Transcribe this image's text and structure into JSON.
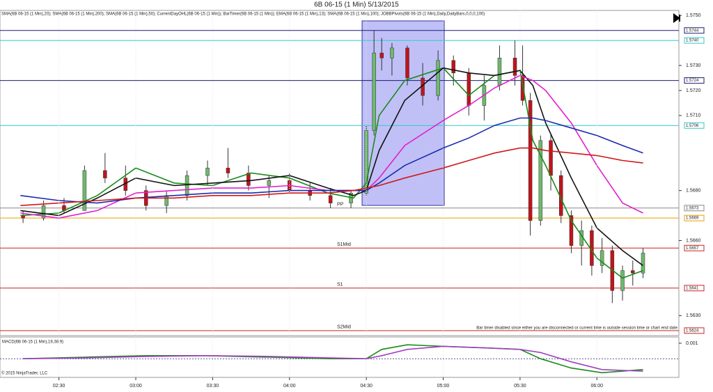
{
  "chart_data": [
    {
      "type": "candlestick",
      "title": "6B 06-15 (1 Min)  5/13/2015",
      "subtitle": "SMA(6B 06-15 (1 Min),20); SMA(6B 06-15 (1 Min),200); SMA(6B 06-15 (1 Min),50); CurrentDayOHL(6B 06-15 (1 Min)); BarTimer(6B 06-15 (1 Min)); EMA(6B 06-15 (1 Min),13); SMA(6B 06-15 (1 Min),100); JOBBPivots(6B 06-15 (1 Min),Daily,DailyBars,0,0,0,100)",
      "note": "Bar timer disabled since either you are disconnected or current time is outside session time or chart end date",
      "copyright": "© 2015 NinjaTrader, LLC",
      "xlim": [
        127,
        392
      ],
      "ylim": [
        1.5622,
        1.5752
      ],
      "yticks": [
        {
          "value": 1.575,
          "label": "1.5750"
        },
        {
          "value": 1.573,
          "label": "1.5730"
        },
        {
          "value": 1.572,
          "label": "1.5720"
        },
        {
          "value": 1.571,
          "label": "1.5710"
        },
        {
          "value": 1.568,
          "label": "1.5680"
        },
        {
          "value": 1.566,
          "label": "1.5660"
        },
        {
          "value": 1.563,
          "label": "1.5630"
        }
      ],
      "candles": {
        "x": [
          136,
          144,
          152,
          160,
          168,
          176,
          184,
          192,
          200,
          208,
          216,
          224,
          232,
          240,
          248,
          256,
          264,
          270,
          273,
          276,
          280,
          286,
          292,
          298,
          304,
          310,
          316,
          322,
          328,
          331,
          334,
          338,
          342,
          346,
          350,
          354,
          358,
          362,
          366,
          370,
          374,
          378
        ],
        "open": [
          1.567,
          1.5669,
          1.5674,
          1.5672,
          1.5688,
          1.5685,
          1.568,
          1.5674,
          1.5678,
          1.5686,
          1.5689,
          1.5687,
          1.5682,
          1.5684,
          1.568,
          1.5678,
          1.5675,
          1.5679,
          1.5704,
          1.5735,
          1.5733,
          1.5737,
          1.5725,
          1.5718,
          1.5732,
          1.5727,
          1.5714,
          1.5722,
          1.5733,
          1.5726,
          1.5716,
          1.5668,
          1.57,
          1.5686,
          1.567,
          1.5658,
          1.5664,
          1.565,
          1.5656,
          1.564,
          1.5648,
          1.5647
        ],
        "high": [
          1.5672,
          1.5676,
          1.5677,
          1.569,
          1.5695,
          1.569,
          1.5682,
          1.568,
          1.5688,
          1.5692,
          1.5697,
          1.569,
          1.5686,
          1.5687,
          1.5683,
          1.5681,
          1.568,
          1.5706,
          1.5744,
          1.5741,
          1.5739,
          1.5738,
          1.5731,
          1.5736,
          1.5734,
          1.5729,
          1.5726,
          1.5738,
          1.574,
          1.5738,
          1.5719,
          1.5702,
          1.5703,
          1.5688,
          1.5672,
          1.5668,
          1.5666,
          1.5661,
          1.5658,
          1.565,
          1.5652,
          1.5657
        ],
        "low": [
          1.5667,
          1.5668,
          1.5671,
          1.5672,
          1.5683,
          1.5678,
          1.5672,
          1.5671,
          1.5676,
          1.5682,
          1.5685,
          1.568,
          1.5677,
          1.5679,
          1.5676,
          1.5673,
          1.5673,
          1.5678,
          1.5702,
          1.5728,
          1.5726,
          1.5722,
          1.5714,
          1.5716,
          1.5722,
          1.571,
          1.5708,
          1.572,
          1.5722,
          1.5714,
          1.5662,
          1.5666,
          1.568,
          1.5667,
          1.5655,
          1.565,
          1.5646,
          1.5647,
          1.5635,
          1.5636,
          1.5642,
          1.5645
        ],
        "close": [
          1.5669,
          1.5674,
          1.5672,
          1.5688,
          1.5685,
          1.568,
          1.5674,
          1.5678,
          1.5686,
          1.5689,
          1.5687,
          1.5682,
          1.5684,
          1.568,
          1.5678,
          1.5675,
          1.5679,
          1.5704,
          1.5735,
          1.5733,
          1.5737,
          1.5725,
          1.5718,
          1.5732,
          1.5727,
          1.5714,
          1.5722,
          1.5733,
          1.5726,
          1.5716,
          1.5668,
          1.57,
          1.5686,
          1.567,
          1.5658,
          1.5664,
          1.565,
          1.5656,
          1.564,
          1.5648,
          1.5647,
          1.5655
        ],
        "up_color": "#6fb86f",
        "down_color": "#c0141c"
      },
      "x": [
        135,
        150,
        165,
        180,
        195,
        210,
        225,
        240,
        255,
        265,
        270,
        275,
        285,
        300,
        310,
        320,
        330,
        335,
        340,
        350,
        360,
        370,
        378
      ],
      "series": [
        {
          "color": "#1a8a1a",
          "values": [
            1.567,
            1.5671,
            1.5678,
            1.5689,
            1.5683,
            1.5682,
            1.5687,
            1.5685,
            1.5679,
            1.5677,
            1.5683,
            1.571,
            1.5724,
            1.5729,
            1.5718,
            1.5726,
            1.5728,
            1.57,
            1.569,
            1.5668,
            1.5653,
            1.5645,
            1.5648
          ]
        },
        {
          "color": "#111111",
          "values": [
            1.5672,
            1.567,
            1.5677,
            1.5685,
            1.5682,
            1.5683,
            1.5684,
            1.5686,
            1.5681,
            1.5678,
            1.568,
            1.5696,
            1.5716,
            1.5729,
            1.5727,
            1.5726,
            1.5728,
            1.5722,
            1.5707,
            1.5685,
            1.5665,
            1.5656,
            1.565
          ]
        },
        {
          "color": "#e020d0",
          "values": [
            1.5671,
            1.5669,
            1.5672,
            1.5679,
            1.568,
            1.5681,
            1.5681,
            1.5682,
            1.568,
            1.568,
            1.568,
            1.5685,
            1.5698,
            1.5708,
            1.5714,
            1.5721,
            1.5726,
            1.5724,
            1.572,
            1.5707,
            1.569,
            1.5675,
            1.5671
          ]
        },
        {
          "color": "#1a2ab0",
          "values": [
            1.5678,
            1.5676,
            1.5675,
            1.5677,
            1.5678,
            1.5679,
            1.5679,
            1.568,
            1.568,
            1.568,
            1.568,
            1.5683,
            1.569,
            1.5697,
            1.5701,
            1.5706,
            1.5709,
            1.5709,
            1.5708,
            1.5705,
            1.5702,
            1.5698,
            1.5695
          ]
        },
        {
          "color": "#d01818",
          "values": [
            1.5674,
            1.5675,
            1.5676,
            1.5677,
            1.5677,
            1.5678,
            1.5678,
            1.5679,
            1.5679,
            1.568,
            1.5681,
            1.5682,
            1.5685,
            1.5689,
            1.5692,
            1.5695,
            1.5697,
            1.5697,
            1.5696,
            1.5695,
            1.5694,
            1.5692,
            1.5691
          ]
        }
      ],
      "levels": [
        {
          "value": 1.5744,
          "color": "#1a1a7a"
        },
        {
          "value": 1.574,
          "value_label": "1.5740",
          "color": "#30c8c8"
        },
        {
          "value": 1.5724,
          "color": "#1a1a7a"
        },
        {
          "value": 1.5706,
          "color": "#30c8c8"
        },
        {
          "value": 1.5673,
          "label": "PP",
          "color": "#888888"
        },
        {
          "value": 1.5669,
          "color": "#e8a000"
        },
        {
          "value": 1.5657,
          "label": "S1Mid",
          "color": "#d02020"
        },
        {
          "value": 1.5641,
          "label": "S1",
          "color": "#d02020"
        },
        {
          "value": 1.5624,
          "label": "S2Mid",
          "color": "#d02020"
        }
      ]
    },
    {
      "type": "line",
      "title": "MACD(6B 06-15 (1 Min),19,38,9)",
      "xlim": [
        127,
        392
      ],
      "ylim": [
        -0.0012,
        0.0014
      ],
      "yticks": [
        0.001
      ],
      "xticks": [
        {
          "value": 150,
          "label": "02:30"
        },
        {
          "value": 180,
          "label": "03:00"
        },
        {
          "value": 210,
          "label": "03:30"
        },
        {
          "value": 240,
          "label": "04:00"
        },
        {
          "value": 270,
          "label": "04:30"
        },
        {
          "value": 300,
          "label": "05:00"
        },
        {
          "value": 330,
          "label": "05:30"
        },
        {
          "value": 360,
          "label": "06:00"
        }
      ],
      "x": [
        136,
        160,
        184,
        208,
        232,
        256,
        270,
        276,
        286,
        300,
        316,
        330,
        338,
        350,
        362,
        378
      ],
      "series": [
        {
          "color": "#1a8a1a",
          "values": [
            0,
            0.0001,
            0.0002,
            0.0002,
            0.0001,
            0,
            0,
            0.0006,
            0.0009,
            0.0008,
            0.0007,
            0.0006,
            0,
            -0.0006,
            -0.0009,
            -0.0007
          ]
        },
        {
          "color": "#a040c0",
          "values": [
            0,
            5e-05,
            0.00015,
            0.0002,
            0.00015,
            5e-05,
            0,
            0.0002,
            0.0006,
            0.0008,
            0.0007,
            0.0006,
            0.0004,
            -0.0002,
            -0.0007,
            -0.0008
          ]
        }
      ]
    }
  ]
}
